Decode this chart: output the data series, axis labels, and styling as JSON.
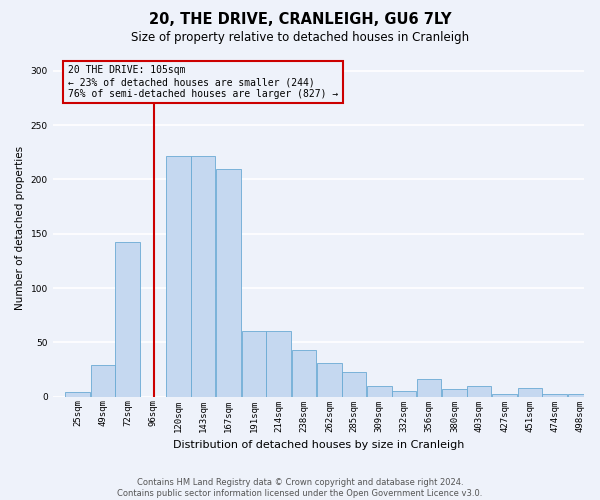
{
  "title": "20, THE DRIVE, CRANLEIGH, GU6 7LY",
  "subtitle": "Size of property relative to detached houses in Cranleigh",
  "xlabel": "Distribution of detached houses by size in Cranleigh",
  "ylabel": "Number of detached properties",
  "bar_color": "#c5d8f0",
  "bar_edge_color": "#6aaad4",
  "categories": [
    "25sqm",
    "49sqm",
    "72sqm",
    "96sqm",
    "120sqm",
    "143sqm",
    "167sqm",
    "191sqm",
    "214sqm",
    "238sqm",
    "262sqm",
    "285sqm",
    "309sqm",
    "332sqm",
    "356sqm",
    "380sqm",
    "403sqm",
    "427sqm",
    "451sqm",
    "474sqm",
    "498sqm"
  ],
  "values": [
    4,
    29,
    142,
    0,
    222,
    222,
    210,
    60,
    60,
    43,
    31,
    23,
    10,
    5,
    16,
    7,
    10,
    2,
    8,
    2,
    2
  ],
  "bin_edges": [
    25,
    49,
    72,
    96,
    120,
    143,
    167,
    191,
    214,
    238,
    262,
    285,
    309,
    332,
    356,
    380,
    403,
    427,
    451,
    474,
    498
  ],
  "bin_width": 23,
  "annotation_text": "20 THE DRIVE: 105sqm\n← 23% of detached houses are smaller (244)\n76% of semi-detached houses are larger (827) →",
  "red_line_x": 108,
  "ylim": [
    0,
    310
  ],
  "yticks": [
    0,
    50,
    100,
    150,
    200,
    250,
    300
  ],
  "footer_line1": "Contains HM Land Registry data © Crown copyright and database right 2024.",
  "footer_line2": "Contains public sector information licensed under the Open Government Licence v3.0.",
  "background_color": "#eef2fa",
  "grid_color": "#ffffff",
  "line_color": "#cc0000",
  "title_fontsize": 10.5,
  "subtitle_fontsize": 8.5,
  "ylabel_fontsize": 7.5,
  "xlabel_fontsize": 8,
  "tick_fontsize": 6.5,
  "footer_fontsize": 6,
  "annot_fontsize": 7
}
